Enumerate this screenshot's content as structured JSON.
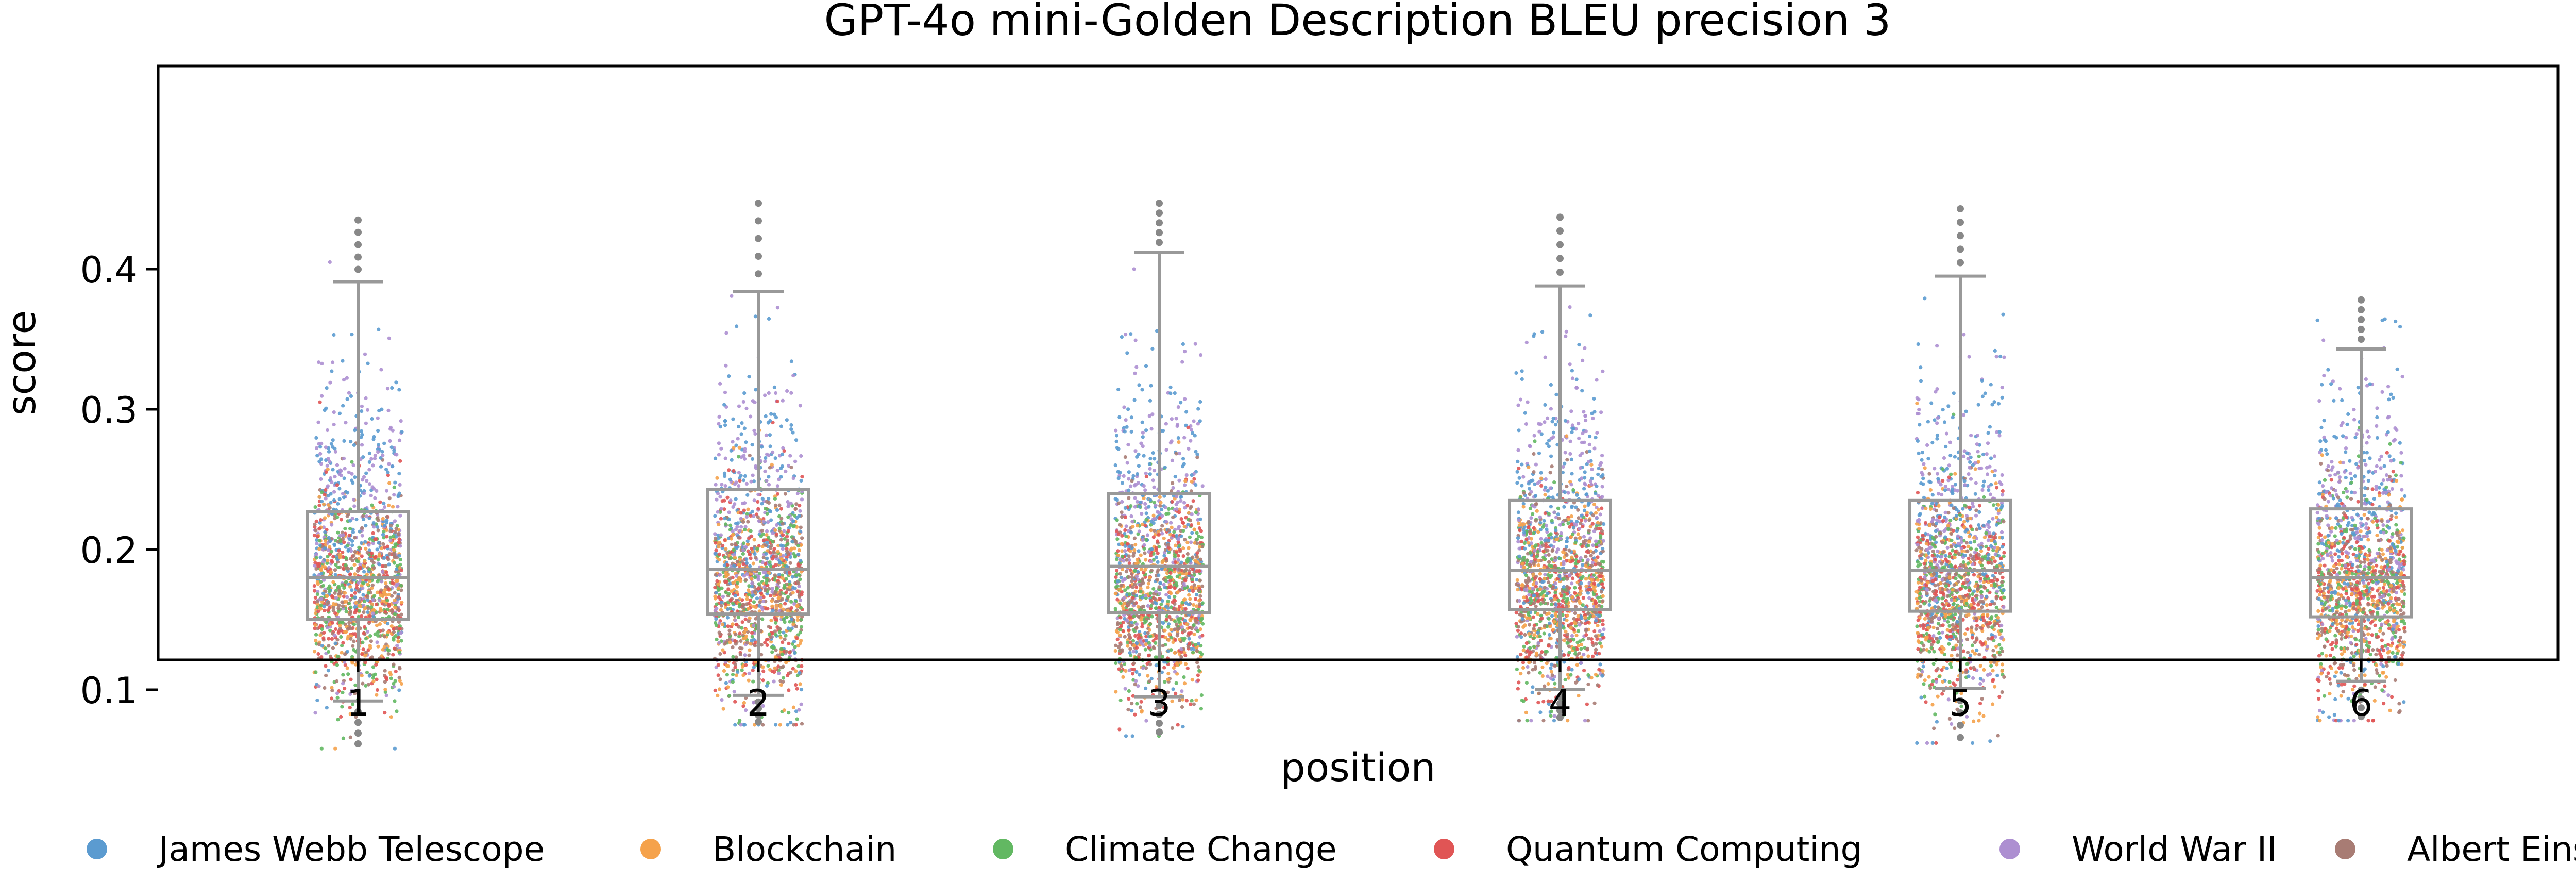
{
  "chart_data": {
    "type": "box",
    "title": "GPT-4o mini-Golden Description BLEU precision 3",
    "xlabel": "position",
    "ylabel": "score",
    "categories": [
      "1",
      "2",
      "3",
      "4",
      "5",
      "6"
    ],
    "ylim": [
      0.04,
      0.465
    ],
    "yticks": [
      0.1,
      0.2,
      0.3,
      0.4
    ],
    "ytick_labels": [
      "0.1",
      "0.2",
      "0.3",
      "0.4"
    ],
    "grid": false,
    "legend_position": "bottom",
    "series": [
      {
        "name": "James Webb Telescope",
        "color": "#5b9bd0"
      },
      {
        "name": "Blockchain",
        "color": "#f5a24b"
      },
      {
        "name": "Climate Change",
        "color": "#62b862"
      },
      {
        "name": "Quantum Computing",
        "color": "#e05555"
      },
      {
        "name": "World War II",
        "color": "#ad8fd1"
      },
      {
        "name": "Albert Einstein",
        "color": "#a87c74"
      }
    ],
    "boxes": [
      {
        "category": "1",
        "whisker_low": 0.092,
        "q1": 0.15,
        "median": 0.18,
        "q3": 0.227,
        "whisker_high": 0.391,
        "data_min": 0.058,
        "data_max": 0.435
      },
      {
        "category": "2",
        "whisker_low": 0.096,
        "q1": 0.154,
        "median": 0.186,
        "q3": 0.243,
        "whisker_high": 0.384,
        "data_min": 0.075,
        "data_max": 0.447
      },
      {
        "category": "3",
        "whisker_low": 0.095,
        "q1": 0.155,
        "median": 0.188,
        "q3": 0.24,
        "whisker_high": 0.412,
        "data_min": 0.067,
        "data_max": 0.447
      },
      {
        "category": "4",
        "whisker_low": 0.1,
        "q1": 0.157,
        "median": 0.185,
        "q3": 0.235,
        "whisker_high": 0.388,
        "data_min": 0.078,
        "data_max": 0.437
      },
      {
        "category": "5",
        "whisker_low": 0.101,
        "q1": 0.156,
        "median": 0.185,
        "q3": 0.235,
        "whisker_high": 0.395,
        "data_min": 0.062,
        "data_max": 0.443
      },
      {
        "category": "6",
        "whisker_low": 0.106,
        "q1": 0.152,
        "median": 0.18,
        "q3": 0.229,
        "whisker_high": 0.343,
        "data_min": 0.078,
        "data_max": 0.378
      }
    ]
  }
}
